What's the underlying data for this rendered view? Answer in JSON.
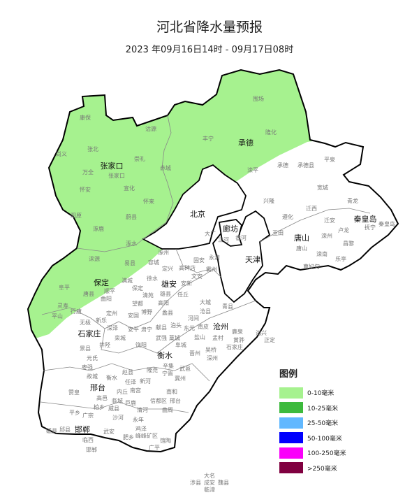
{
  "title": "河北省降水量预报",
  "subtitle": "2023 年09月16日14时 - 09月17日08时",
  "legend": {
    "title": "图例",
    "items": [
      {
        "label": "0-10毫米",
        "color": "#a6f28f"
      },
      {
        "label": "10-25毫米",
        "color": "#3dba3d"
      },
      {
        "label": "25-50毫米",
        "color": "#61b8ff"
      },
      {
        "label": "50-100毫米",
        "color": "#0000fe"
      },
      {
        "label": "100-250毫米",
        "color": "#fa00fa"
      },
      {
        "label": ">250毫米",
        "color": "#800040"
      }
    ]
  },
  "map": {
    "rain_fill": "#a6f28f",
    "rain_band": "0-10毫米",
    "cities": [
      "张家口",
      "承德",
      "北京",
      "廊坊",
      "天津",
      "唐山",
      "秦皇岛",
      "保定",
      "雄安",
      "沧州",
      "石家庄",
      "衡水",
      "邢台",
      "邯郸"
    ],
    "counties": [
      "康保",
      "沽源",
      "尚义",
      "张北",
      "崇礼",
      "赤城",
      "万全",
      "张家口",
      "怀安",
      "宣化",
      "怀来",
      "阳原",
      "涿鹿",
      "蔚县",
      "涿水",
      "围场",
      "丰宁",
      "隆化",
      "滦平",
      "承德",
      "承德县",
      "平泉",
      "兴隆",
      "宽城",
      "青龙",
      "迁西",
      "遵化",
      "迁安",
      "玉田",
      "唐山",
      "滦州",
      "卢龙",
      "抚宁",
      "秦皇岛",
      "昌黎",
      "滦南",
      "乐亭",
      "曹妃甸",
      "三河",
      "大厂",
      "香河",
      "涿州",
      "易县",
      "涞源",
      "阜平",
      "唐县",
      "顺平",
      "满城",
      "徐水",
      "定兴",
      "高碑店",
      "固安",
      "永清",
      "霸州",
      "文安",
      "容城",
      "安新",
      "雄县",
      "保定",
      "清苑",
      "望都",
      "曲阳",
      "灵寿",
      "行唐",
      "平山",
      "定州",
      "博野",
      "蠡县",
      "高阳",
      "任丘",
      "大城",
      "青县",
      "沧县",
      "河间",
      "新乐",
      "安国",
      "肃宁",
      "献县",
      "泊头",
      "南皮",
      "盐山",
      "孟村",
      "黄骅",
      "海兴",
      "正定",
      "无极",
      "深泽",
      "安平",
      "饶阳",
      "武强",
      "阜城",
      "东光",
      "吴桥",
      "鹿泉",
      "石家庄",
      "藁城",
      "晋州",
      "辛集",
      "深州",
      "武邑",
      "景县",
      "井陉",
      "元氏",
      "栾城",
      "赵县",
      "宁晋",
      "新河",
      "冀州",
      "枣强",
      "故城",
      "赞皇",
      "高邑",
      "柏乡",
      "衡水",
      "临城",
      "内丘",
      "隆尧",
      "巨鹿",
      "南宫",
      "信都区",
      "邢台",
      "任泽",
      "南和",
      "平乡",
      "广宗",
      "威县",
      "清河",
      "沙河",
      "永年",
      "鸡泽",
      "曲周",
      "邱县",
      "临西",
      "武安",
      "邯郸",
      "肥乡",
      "广平",
      "馆陶",
      "峰峰矿区",
      "磁县",
      "成安",
      "大名",
      "临漳",
      "魏县",
      "涉县"
    ]
  }
}
